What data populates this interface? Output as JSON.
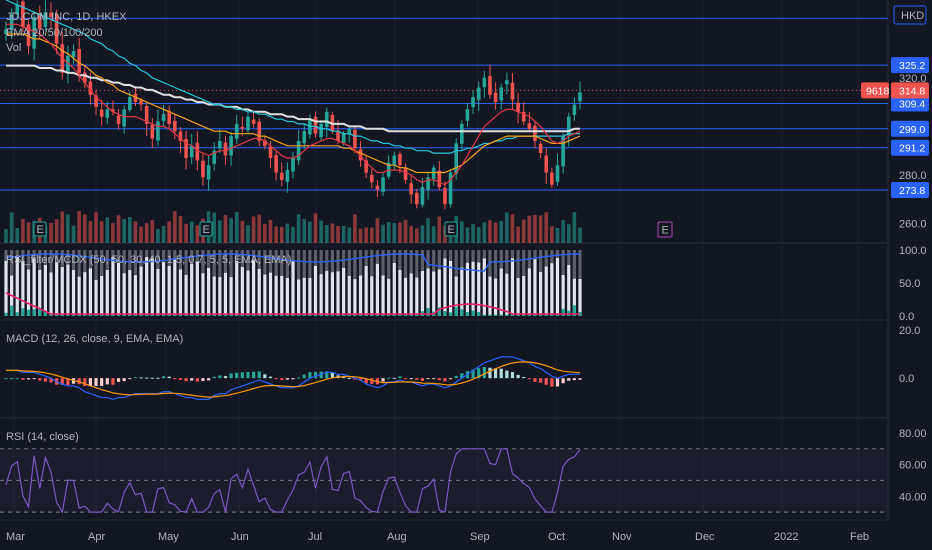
{
  "header": {
    "symbol_line": "JD.COM INC, 1D, HKEX",
    "ema_label": "EMA 20/50/100/200",
    "vol_label": "Vol"
  },
  "currency": "HKD",
  "price_badge": {
    "volume": "9618",
    "last": "314.8"
  },
  "indicators": {
    "rsi_mcdx": "RSI_filter/MCDX (50, 50, 30, 40, 1.5, 0.7, 5, 5, EMA, EMA)",
    "macd": "MACD (12, 26, close, 9, EMA, EMA)",
    "rsi": "RSI (14, close)"
  },
  "earnings_marker": "E",
  "colors": {
    "bg": "#131722",
    "up": "#26a69a",
    "down": "#ef5350",
    "hline": "#2962ff",
    "ema20": "#e53946",
    "ema50": "#f7a21b",
    "ema100": "#26c6da",
    "ema200": "#e0e0e0",
    "macd": "#2962ff",
    "signal": "#ff9800",
    "rsi": "#7e57c2",
    "mcdx_pink": "#e91e63"
  },
  "chart_data": [
    {
      "name": "price",
      "type": "candlestick",
      "y_ticks": [
        320.0,
        280.0,
        260.0
      ],
      "y_range": [
        252,
        352
      ],
      "horizontal_levels": [
        {
          "label": "325.2",
          "value": 325.2
        },
        {
          "label": "309.4",
          "value": 309.4
        },
        {
          "label": "299.0",
          "value": 299.0
        },
        {
          "label": "291.2",
          "value": 291.2
        },
        {
          "label": "273.8",
          "value": 273.8
        }
      ],
      "top_level": 344.5,
      "last_price": 314.8,
      "x_labels": [
        "Mar",
        "Apr",
        "May",
        "Jun",
        "Jul",
        "Aug",
        "Sep",
        "Oct",
        "Nov",
        "Dec",
        "2022",
        "Feb"
      ],
      "closes": [
        340,
        346,
        350,
        341,
        333,
        345,
        340,
        347,
        345,
        334,
        322,
        329,
        331,
        322,
        318,
        313,
        308,
        304,
        307,
        306,
        301,
        307,
        312,
        310,
        309,
        301,
        295,
        302,
        305,
        301,
        298,
        294,
        287,
        292,
        286,
        279,
        284,
        290,
        294,
        288,
        296,
        301,
        299,
        304,
        301,
        294,
        292,
        287,
        281,
        278,
        282,
        287,
        294,
        298,
        303,
        297,
        301,
        306,
        298,
        294,
        297,
        299,
        291,
        286,
        281,
        277,
        274,
        279,
        285,
        288,
        284,
        278,
        272,
        268,
        275,
        279,
        283,
        275,
        268,
        281,
        293,
        301,
        307,
        312,
        316,
        320,
        313,
        310,
        316,
        319,
        311,
        306,
        302,
        299,
        294,
        289,
        281,
        276,
        284,
        296,
        304,
        309,
        314
      ],
      "ema20": [
        342,
        342,
        342,
        341,
        340,
        339,
        338,
        336,
        334,
        331,
        328,
        326,
        324,
        321,
        318,
        315,
        312,
        310,
        308,
        306,
        305,
        304,
        304,
        304,
        303,
        302,
        301,
        300,
        300,
        299,
        297,
        295,
        293,
        292,
        290,
        289,
        288,
        289,
        290,
        290,
        291,
        292,
        293,
        294,
        295,
        295,
        294,
        292,
        290,
        288,
        287,
        287,
        288,
        290,
        292,
        293,
        294,
        295,
        295,
        294,
        293,
        292,
        290,
        288,
        285,
        283,
        281,
        281,
        282,
        282,
        282,
        281,
        280,
        278,
        277,
        278,
        278,
        277,
        276,
        278,
        281,
        284,
        288,
        292,
        296,
        300,
        302,
        304,
        306,
        307,
        307,
        306,
        305,
        304,
        302,
        300,
        297,
        294,
        293,
        294,
        296,
        297,
        298
      ],
      "ema50": [
        338,
        338,
        338,
        338,
        337,
        336,
        336,
        335,
        334,
        333,
        331,
        330,
        328,
        326,
        325,
        323,
        321,
        320,
        318,
        317,
        315,
        314,
        313,
        312,
        311,
        310,
        309,
        308,
        307,
        306,
        305,
        304,
        303,
        302,
        301,
        300,
        299,
        298,
        298,
        298,
        297,
        297,
        297,
        297,
        297,
        296,
        296,
        295,
        294,
        293,
        292,
        292,
        292,
        292,
        292,
        292,
        292,
        292,
        292,
        292,
        291,
        291,
        290,
        289,
        288,
        287,
        286,
        285,
        284,
        284,
        283,
        283,
        282,
        281,
        281,
        281,
        281,
        281,
        281,
        282,
        283,
        284,
        286,
        288,
        290,
        292,
        293,
        294,
        295,
        296,
        296,
        296,
        296,
        296,
        296,
        295,
        294,
        293,
        293,
        293,
        294,
        295,
        296
      ],
      "ema100": [
        352,
        351,
        350,
        349,
        348,
        347,
        346,
        345,
        344,
        343,
        342,
        341,
        340,
        339,
        338,
        336,
        335,
        334,
        332,
        331,
        329,
        328,
        326,
        325,
        323,
        322,
        320,
        319,
        318,
        317,
        316,
        315,
        314,
        313,
        312,
        311,
        310,
        309,
        309,
        308,
        308,
        307,
        307,
        306,
        306,
        305,
        305,
        304,
        303,
        303,
        302,
        302,
        301,
        301,
        300,
        300,
        299,
        299,
        298,
        298,
        297,
        297,
        296,
        296,
        295,
        294,
        294,
        293,
        293,
        292,
        292,
        291,
        291,
        290,
        290,
        290,
        289,
        289,
        289,
        289,
        290,
        290,
        291,
        291,
        292,
        293,
        293,
        294,
        294,
        295,
        295,
        296,
        296,
        296,
        296,
        296,
        296,
        296,
        296,
        296,
        297,
        297,
        297
      ],
      "ema200": [
        325,
        325,
        325,
        325,
        325,
        325,
        324,
        324,
        324,
        323,
        323,
        322,
        322,
        321,
        321,
        320,
        320,
        319,
        319,
        318,
        318,
        317,
        317,
        316,
        316,
        315,
        315,
        314,
        313,
        313,
        312,
        312,
        311,
        311,
        310,
        310,
        309,
        309,
        309,
        308,
        308,
        308,
        307,
        307,
        306,
        306,
        306,
        305,
        305,
        305,
        304,
        304,
        303,
        303,
        303,
        302,
        302,
        302,
        301,
        301,
        301,
        300,
        300,
        300,
        299,
        299,
        299,
        299,
        298,
        298,
        298,
        298,
        298,
        298,
        298,
        298,
        298,
        298,
        298,
        298,
        298,
        298,
        298,
        298,
        298,
        298,
        298,
        298,
        298,
        298,
        298,
        298,
        298,
        298,
        298,
        298,
        298,
        298,
        298,
        298,
        298,
        299,
        299
      ]
    },
    {
      "name": "mcdx",
      "type": "bar",
      "y_ticks": [
        100.0,
        50.0,
        0.0
      ],
      "y_range": [
        0,
        100
      ]
    },
    {
      "name": "macd",
      "type": "line",
      "y_ticks": [
        20.0,
        0.0
      ],
      "y_range": [
        -14,
        22
      ]
    },
    {
      "name": "rsi",
      "type": "line",
      "y_ticks": [
        80.0,
        60.0,
        40.0
      ],
      "y_range": [
        25,
        85
      ],
      "band": [
        30,
        70
      ]
    }
  ]
}
